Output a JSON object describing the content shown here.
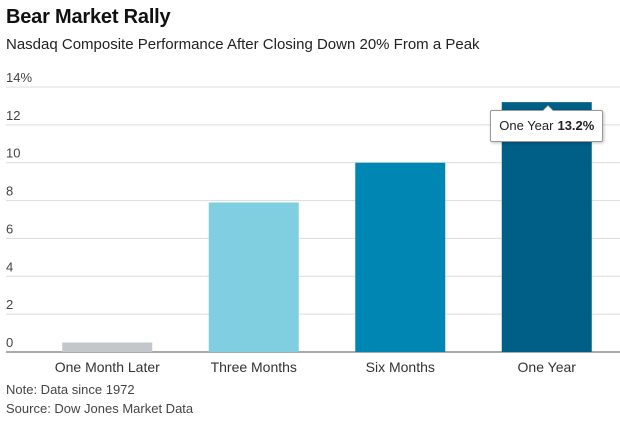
{
  "chart_data": {
    "type": "bar",
    "title": "Bear Market Rally",
    "subtitle": "Nasdaq Composite Performance After Closing Down 20% From a Peak",
    "categories": [
      "One Month Later",
      "Three Months",
      "Six Months",
      "One Year"
    ],
    "values": [
      0.5,
      7.9,
      10.0,
      13.2
    ],
    "colors": [
      "#c3c6cb",
      "#80cfe0",
      "#0086b3",
      "#005f87"
    ],
    "ylim": [
      0,
      14
    ],
    "y_ticks": [
      0,
      2,
      4,
      6,
      8,
      10,
      12,
      14
    ],
    "y_tick_labels": [
      "0",
      "2",
      "4",
      "6",
      "8",
      "10",
      "12",
      "14%"
    ],
    "grid": true,
    "xlabel": "",
    "ylabel": "",
    "tooltip": {
      "category": "One Year",
      "value_label": "13.2%"
    },
    "note": "Note: Data since 1972",
    "source": "Source: Dow Jones Market Data"
  }
}
